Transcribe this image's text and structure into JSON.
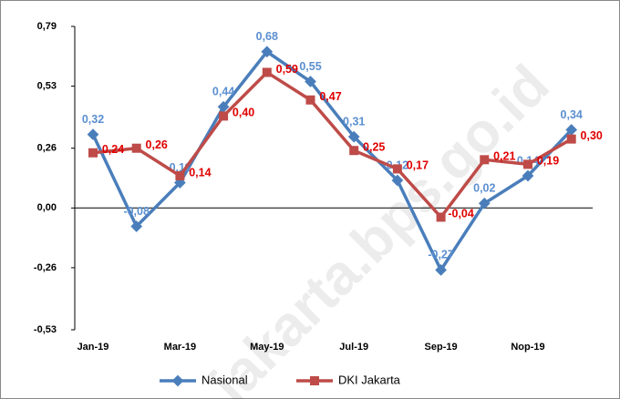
{
  "chart_data": {
    "type": "line",
    "categories": [
      "Jan-19",
      null,
      "Mar-19",
      null,
      "May-19",
      null,
      "Jul-19",
      null,
      "Sep-19",
      null,
      "Nop-19",
      null
    ],
    "series": [
      {
        "name": "Nasional",
        "color": "#4a7ebb",
        "label_color": "#5b8fd0",
        "values": [
          0.32,
          -0.08,
          0.11,
          0.44,
          0.68,
          0.55,
          0.31,
          0.12,
          -0.27,
          0.02,
          0.14,
          0.34
        ],
        "value_labels": [
          "0,32",
          "-0,08",
          "0,11",
          "0,44",
          "0,68",
          "0,55",
          "0,31",
          "0,12",
          "-0,27",
          "0,02",
          "0,14",
          "0,34"
        ]
      },
      {
        "name": "DKI Jakarta",
        "color": "#be4b48",
        "label_color": "#e00000",
        "values": [
          0.24,
          0.26,
          0.14,
          0.4,
          0.59,
          0.47,
          0.25,
          0.17,
          -0.04,
          0.21,
          0.19,
          0.3
        ],
        "value_labels": [
          "0,24",
          "0,26",
          "0,14",
          "0,40",
          "0,59",
          "0,47",
          "0,25",
          "0,17",
          "-0,04",
          "0,21",
          "0,19",
          "0,30"
        ]
      }
    ],
    "ylim": [
      -0.53,
      0.79
    ],
    "yticks": [
      {
        "value": -0.53,
        "label": "-0,53"
      },
      {
        "value": -0.26,
        "label": "-0,26"
      },
      {
        "value": 0,
        "label": "0,00"
      },
      {
        "value": 0.26,
        "label": "0,26"
      },
      {
        "value": 0.53,
        "label": "0,53"
      },
      {
        "value": 0.79,
        "label": "0,79"
      }
    ],
    "legend": "bottom",
    "watermark": "jakarta.bps.go.id"
  }
}
